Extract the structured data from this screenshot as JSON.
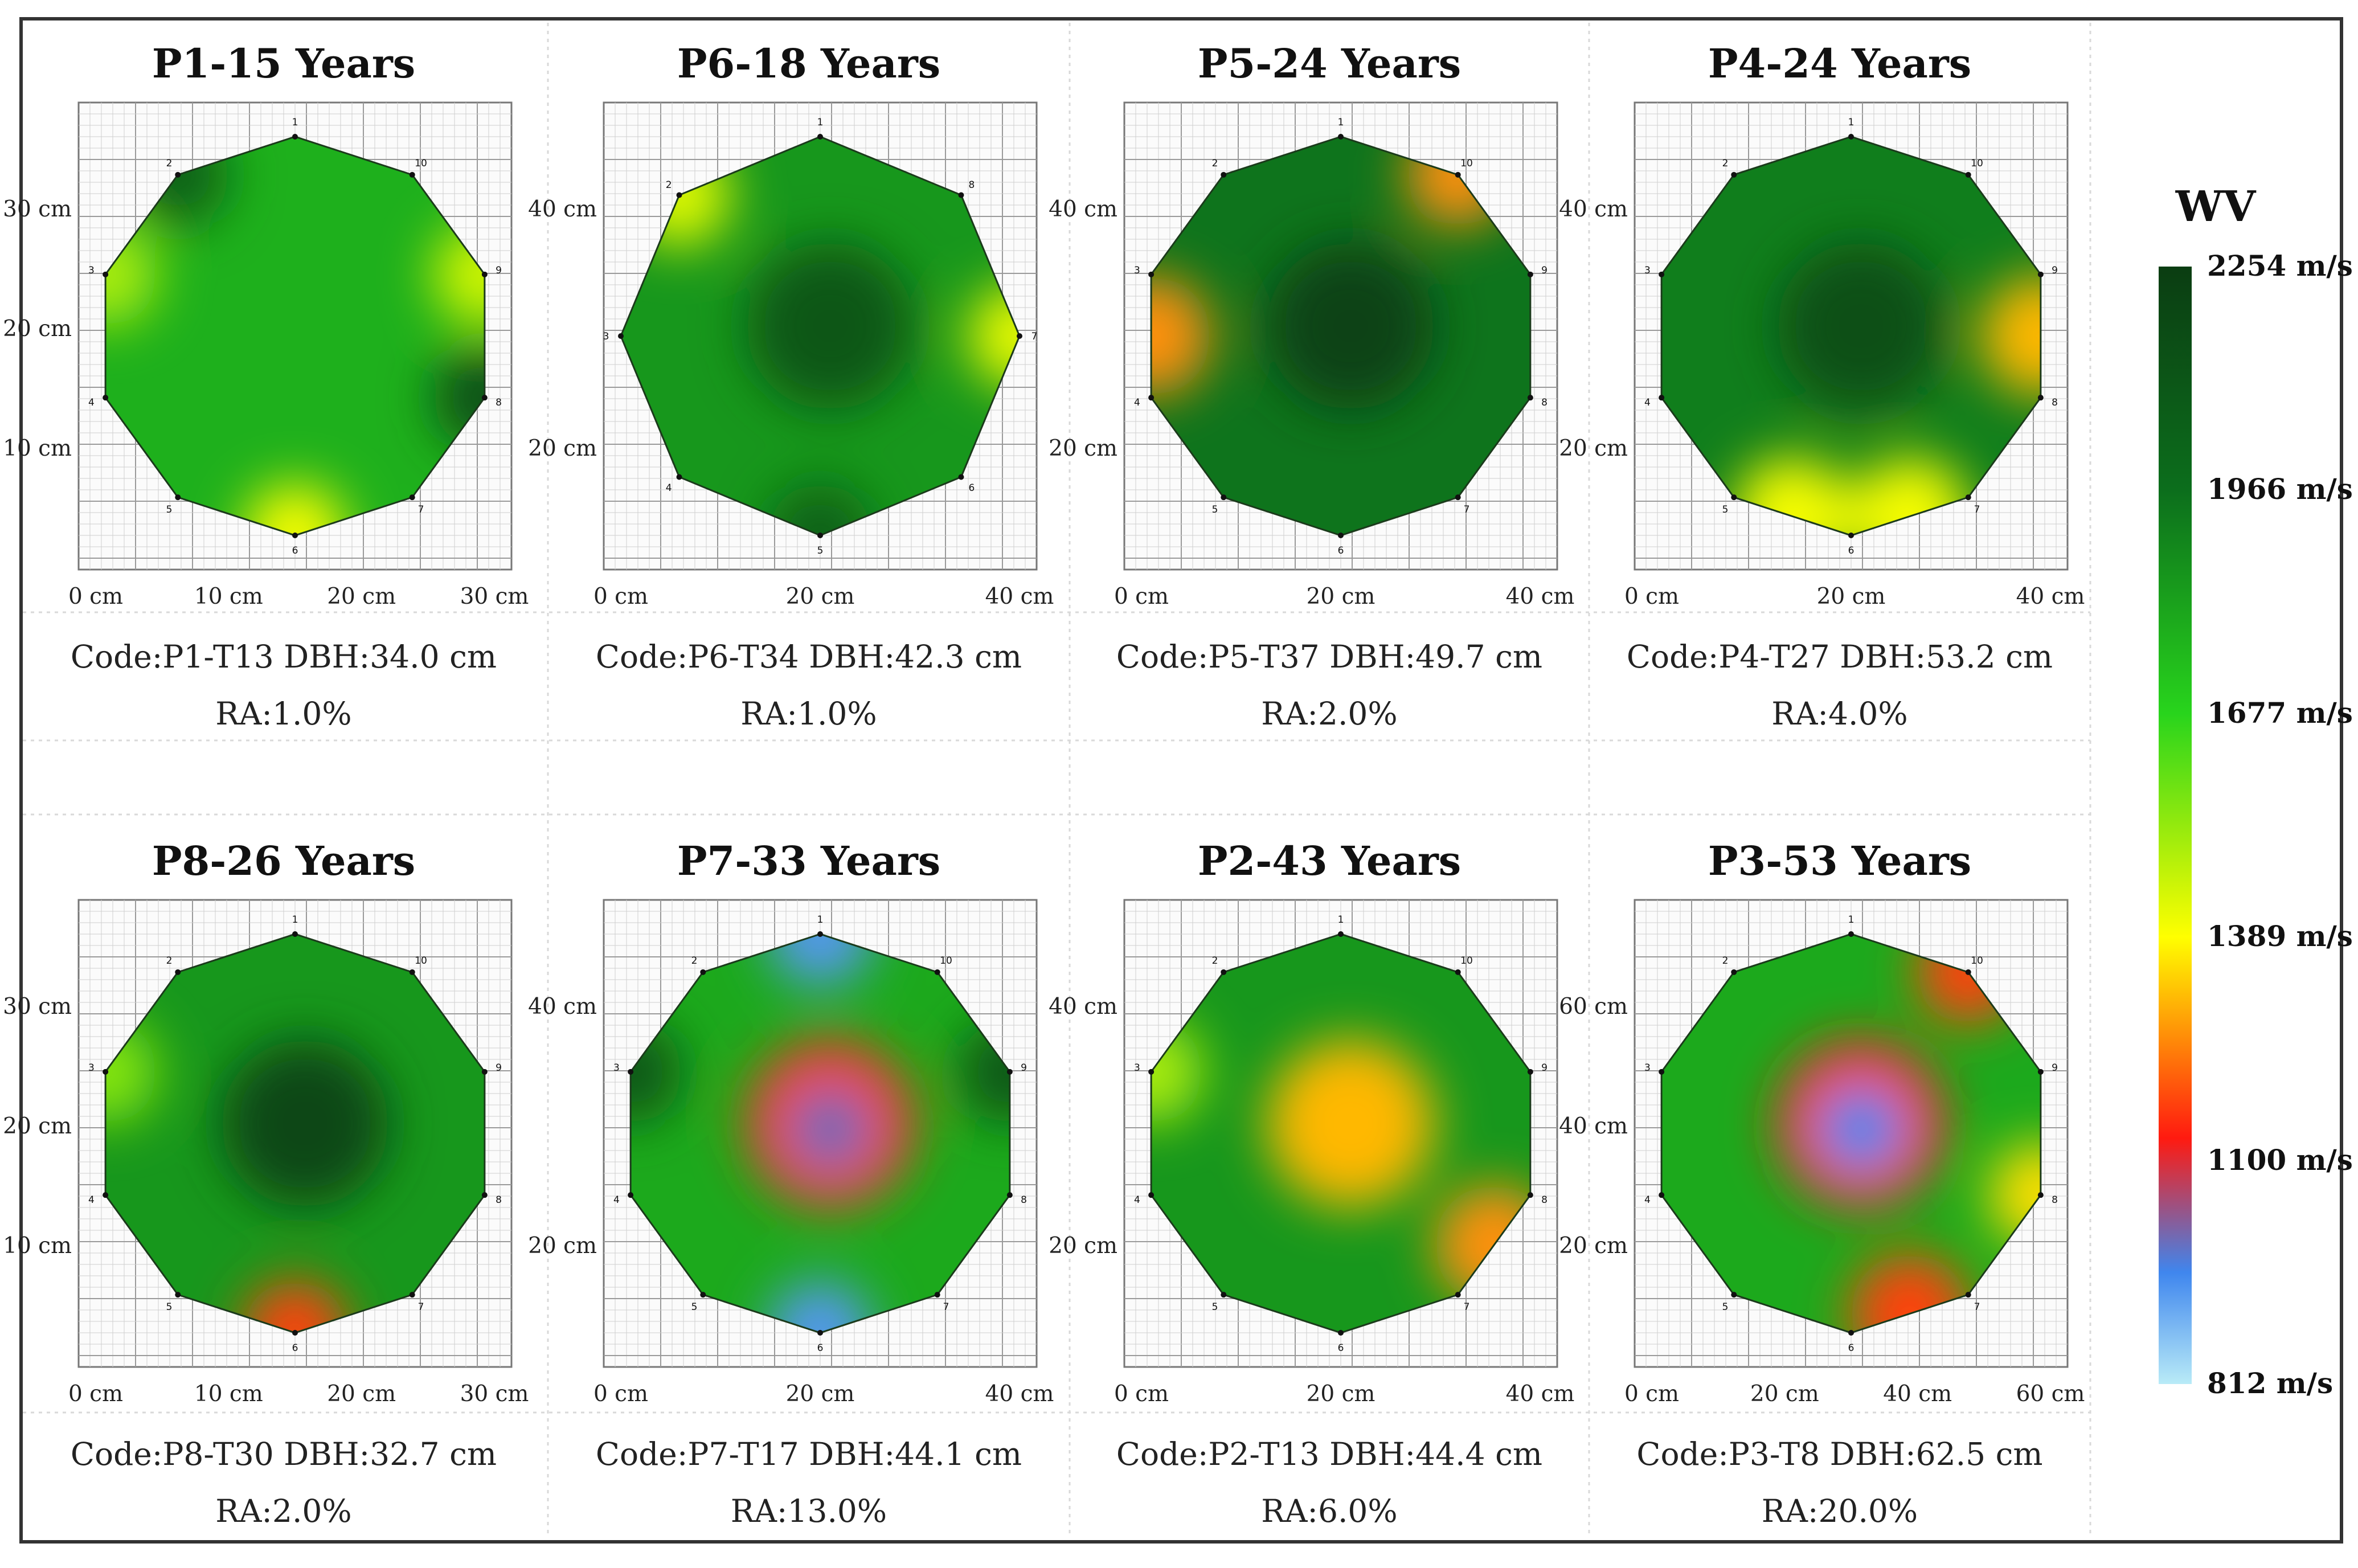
{
  "chart_data": {
    "type": "heatmap",
    "description_label": "Stress wave tomography panels",
    "colorbar": {
      "title": "WV",
      "labels": [
        "2254 m/s",
        "1966 m/s",
        "1677 m/s",
        "1389 m/s",
        "1100 m/s",
        "812 m/s"
      ],
      "values": [
        2254,
        1966,
        1677,
        1389,
        1100,
        812
      ],
      "range": [
        812,
        2254
      ],
      "colors": [
        "#0b3d12",
        "#0c6e1c",
        "#28d41c",
        "#ffff00",
        "#ff1a10",
        "#3f86ee",
        "#b9ebf7"
      ]
    },
    "panels": [
      {
        "title": "P1-15 Years",
        "code": "Code:P1-T13",
        "dbh": "DBH:34.0 cm",
        "ra": "RA:1.0%",
        "x_ticks": [
          "0 cm",
          "10 cm",
          "20 cm",
          "30 cm"
        ],
        "y_ticks": [
          "30 cm",
          "20 cm",
          "10 cm"
        ],
        "sensor_labels": [
          "1",
          "2",
          "3",
          "4",
          "5",
          "6",
          "7",
          "8",
          "9",
          "10"
        ],
        "base_velocity": 1780,
        "anomalies": [
          {
            "sensor": 6,
            "velocity": 1400
          },
          {
            "sensor": 9,
            "velocity": 1450
          },
          {
            "sensor": 3,
            "velocity": 1500
          },
          {
            "sensor": 8,
            "velocity": 2150
          },
          {
            "sensor": 2,
            "velocity": 2050
          }
        ]
      },
      {
        "title": "P6-18 Years",
        "code": "Code:P6-T34",
        "dbh": "DBH:42.3 cm",
        "ra": "RA:1.0%",
        "x_ticks": [
          "0 cm",
          "20 cm",
          "40 cm"
        ],
        "y_ticks": [
          "40 cm",
          "20 cm"
        ],
        "sensor_labels": [
          "1",
          "2",
          "3",
          "4",
          "5",
          "6",
          "7",
          "8"
        ],
        "base_velocity": 1850,
        "anomalies": [
          {
            "sensor": 2,
            "velocity": 1430
          },
          {
            "sensor": 7,
            "velocity": 1420
          },
          {
            "center": true,
            "velocity": 2100
          },
          {
            "sensor": 5,
            "velocity": 2050
          }
        ]
      },
      {
        "title": "P5-24 Years",
        "code": "Code:P5-T37",
        "dbh": "DBH:49.7 cm",
        "ra": "RA:2.0%",
        "x_ticks": [
          "0 cm",
          "20 cm",
          "40 cm"
        ],
        "y_ticks": [
          "40 cm",
          "20 cm"
        ],
        "sensor_labels": [
          "1",
          "2",
          "3",
          "4",
          "5",
          "6",
          "7",
          "8",
          "9",
          "10"
        ],
        "base_velocity": 1950,
        "anomalies": [
          {
            "sensor": 10,
            "velocity": 1250
          },
          {
            "edge": "3-4",
            "velocity": 1250
          },
          {
            "center": true,
            "velocity": 2220
          }
        ]
      },
      {
        "title": "P4-24 Years",
        "code": "Code:P4-T27",
        "dbh": "DBH:53.2 cm",
        "ra": "RA:4.0%",
        "x_ticks": [
          "0 cm",
          "20 cm",
          "40 cm"
        ],
        "y_ticks": [
          "40 cm",
          "20 cm"
        ],
        "sensor_labels": [
          "1",
          "2",
          "3",
          "4",
          "5",
          "6",
          "7",
          "8",
          "9",
          "10"
        ],
        "base_velocity": 1920,
        "anomalies": [
          {
            "edge": "8-9",
            "velocity": 1300
          },
          {
            "edge": "5-6",
            "velocity": 1400
          },
          {
            "edge": "6-7",
            "velocity": 1400
          },
          {
            "center": true,
            "velocity": 2150
          }
        ]
      },
      {
        "title": "P8-26 Years",
        "code": "Code:P8-T30",
        "dbh": "DBH:32.7 cm",
        "ra": "RA:2.0%",
        "x_ticks": [
          "0 cm",
          "10 cm",
          "20 cm",
          "30 cm"
        ],
        "y_ticks": [
          "30 cm",
          "20 cm",
          "10 cm"
        ],
        "sensor_labels": [
          "1",
          "2",
          "3",
          "4",
          "5",
          "6",
          "7",
          "8",
          "9",
          "10"
        ],
        "base_velocity": 1850,
        "anomalies": [
          {
            "sensor": 6,
            "velocity": 1150
          },
          {
            "center": true,
            "velocity": 2200
          },
          {
            "sensor": 3,
            "velocity": 1550
          }
        ]
      },
      {
        "title": "P7-33 Years",
        "code": "Code:P7-T17",
        "dbh": "DBH:44.1 cm",
        "ra": "RA:13.0%",
        "x_ticks": [
          "0 cm",
          "20 cm",
          "40 cm"
        ],
        "y_ticks": [
          "40 cm",
          "20 cm"
        ],
        "sensor_labels": [
          "1",
          "2",
          "3",
          "4",
          "5",
          "6",
          "7",
          "8",
          "9",
          "10"
        ],
        "base_velocity": 1800,
        "anomalies": [
          {
            "center": true,
            "velocity": 1130
          },
          {
            "sensor": 1,
            "velocity": 950
          },
          {
            "sensor": 6,
            "velocity": 950
          },
          {
            "sensor": 9,
            "velocity": 2100
          },
          {
            "sensor": 3,
            "velocity": 2100
          }
        ]
      },
      {
        "title": "P2-43 Years",
        "code": "Code:P2-T13",
        "dbh": "DBH:44.4 cm",
        "ra": "RA:6.0%",
        "x_ticks": [
          "0 cm",
          "20 cm",
          "40 cm"
        ],
        "y_ticks": [
          "40 cm",
          "20 cm"
        ],
        "sensor_labels": [
          "1",
          "2",
          "3",
          "4",
          "5",
          "6",
          "7",
          "8",
          "9",
          "10"
        ],
        "base_velocity": 1850,
        "anomalies": [
          {
            "center": true,
            "velocity": 1300
          },
          {
            "edge": "7-8",
            "velocity": 1250
          },
          {
            "sensor": 3,
            "velocity": 1500
          }
        ]
      },
      {
        "title": "P3-53 Years",
        "code": "Code:P3-T8",
        "dbh": "DBH:62.5 cm",
        "ra": "RA:20.0%",
        "x_ticks": [
          "0 cm",
          "20 cm",
          "40 cm",
          "60 cm"
        ],
        "y_ticks": [
          "60 cm",
          "40 cm",
          "20 cm"
        ],
        "sensor_labels": [
          "1",
          "2",
          "3",
          "4",
          "5",
          "6",
          "7",
          "8",
          "9",
          "10"
        ],
        "base_velocity": 1800,
        "anomalies": [
          {
            "center": true,
            "velocity": 1100
          },
          {
            "edge": "6-7",
            "velocity": 1150
          },
          {
            "sensor": 10,
            "velocity": 1150
          },
          {
            "sensor": 8,
            "velocity": 1350
          }
        ]
      }
    ]
  }
}
